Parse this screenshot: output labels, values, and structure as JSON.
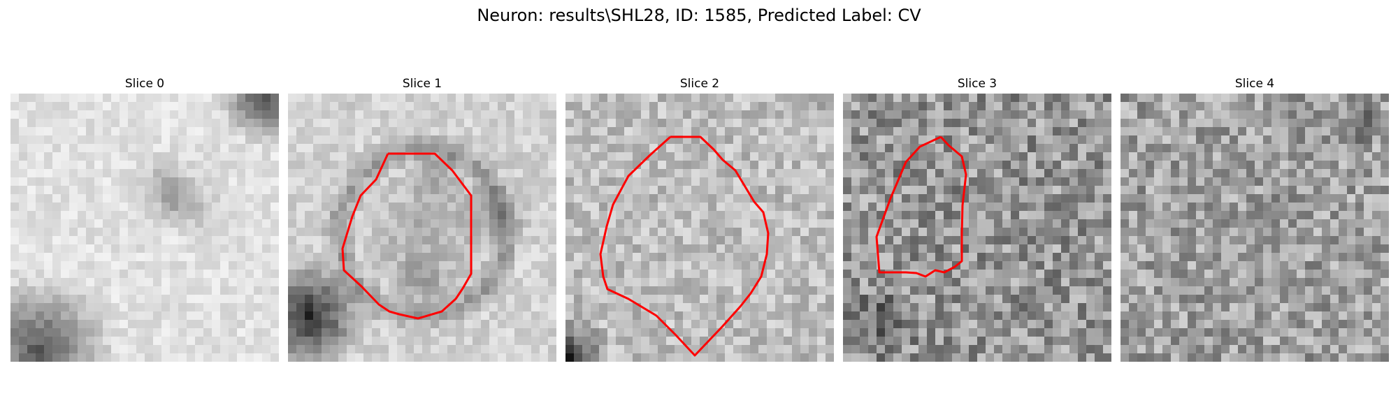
{
  "suptitle": "Neuron: results\\SHL28, ID: 1585, Predicted Label: CV",
  "colors": {
    "contour": "#ff0000",
    "colormap": "gray"
  },
  "panels": [
    {
      "title": "Slice 0",
      "has_contour": false
    },
    {
      "title": "Slice 1",
      "has_contour": true
    },
    {
      "title": "Slice 2",
      "has_contour": true
    },
    {
      "title": "Slice 3",
      "has_contour": true
    },
    {
      "title": "Slice 4",
      "has_contour": false
    }
  ]
}
